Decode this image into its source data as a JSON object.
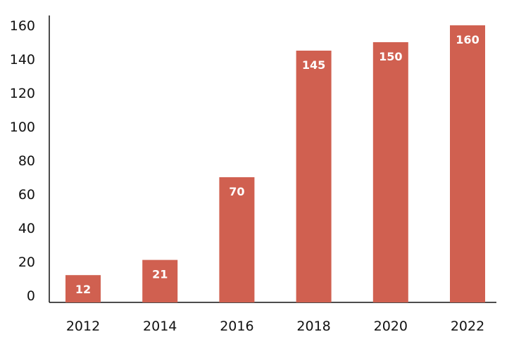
{
  "chart_data": {
    "type": "bar",
    "title": "",
    "xlabel": "",
    "ylabel": "",
    "categories": [
      "2012",
      "2014",
      "2016",
      "2018",
      "2020",
      "2022"
    ],
    "values": [
      12,
      21,
      70,
      145,
      150,
      160
    ],
    "data_labels": [
      "12",
      "21",
      "70",
      "145",
      "150",
      "160"
    ],
    "ylim": [
      0,
      160
    ],
    "yticks": [
      "0",
      "20",
      "40",
      "60",
      "80",
      "100",
      "120",
      "140",
      "160"
    ],
    "grid": false,
    "legend": "none",
    "bar_color": "#d06050"
  }
}
